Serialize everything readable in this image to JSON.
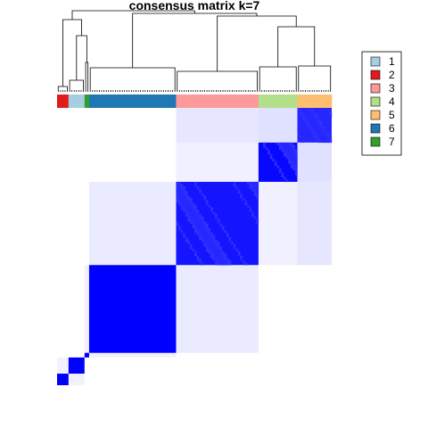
{
  "chart_data": {
    "type": "heatmap",
    "title": "consensus matrix k=7",
    "k": 7,
    "legend": {
      "placement": "right",
      "entries": [
        {
          "label": "1",
          "color": "#a6cee3"
        },
        {
          "label": "2",
          "color": "#e31a1c"
        },
        {
          "label": "3",
          "color": "#fb9a99"
        },
        {
          "label": "4",
          "color": "#b2df8a"
        },
        {
          "label": "5",
          "color": "#fdbf6f"
        },
        {
          "label": "6",
          "color": "#1f78b4"
        },
        {
          "label": "7",
          "color": "#33a02c"
        }
      ]
    },
    "value_range": [
      0,
      1
    ],
    "color_scale": {
      "low": "#ffffff",
      "high": "#0000ff"
    },
    "n_samples": 120,
    "column_class_bar": [
      {
        "class": "2",
        "count": 5
      },
      {
        "class": "1",
        "count": 7
      },
      {
        "class": "7",
        "count": 2
      },
      {
        "class": "6",
        "count": 38
      },
      {
        "class": "3",
        "count": 36
      },
      {
        "class": "4",
        "count": 17
      },
      {
        "class": "5",
        "count": 15
      }
    ],
    "diagonal_blocks_bottom_to_top": [
      {
        "class": "2",
        "count": 5,
        "consensus": 1.0
      },
      {
        "class": "1",
        "count": 7,
        "consensus": 1.0
      },
      {
        "class": "7",
        "count": 2,
        "consensus": 1.0
      },
      {
        "class": "6",
        "count": 38,
        "consensus": 1.0
      },
      {
        "class": "3",
        "count": 36,
        "consensus": 0.92
      },
      {
        "class": "4",
        "count": 17,
        "consensus": 0.97
      },
      {
        "class": "5",
        "count": 15,
        "consensus": 0.85
      }
    ],
    "off_diagonal": [
      {
        "classes": [
          "5",
          "4"
        ],
        "consensus": 0.12
      },
      {
        "classes": [
          "5",
          "3"
        ],
        "consensus": 0.1
      },
      {
        "classes": [
          "4",
          "3"
        ],
        "consensus": 0.06
      },
      {
        "classes": [
          "3",
          "6"
        ],
        "consensus": 0.08
      },
      {
        "classes": [
          "6",
          "7"
        ],
        "consensus": 0.06
      },
      {
        "classes": [
          "1",
          "2"
        ],
        "consensus": 0.05
      }
    ],
    "dendrogram": true,
    "grid": false
  }
}
